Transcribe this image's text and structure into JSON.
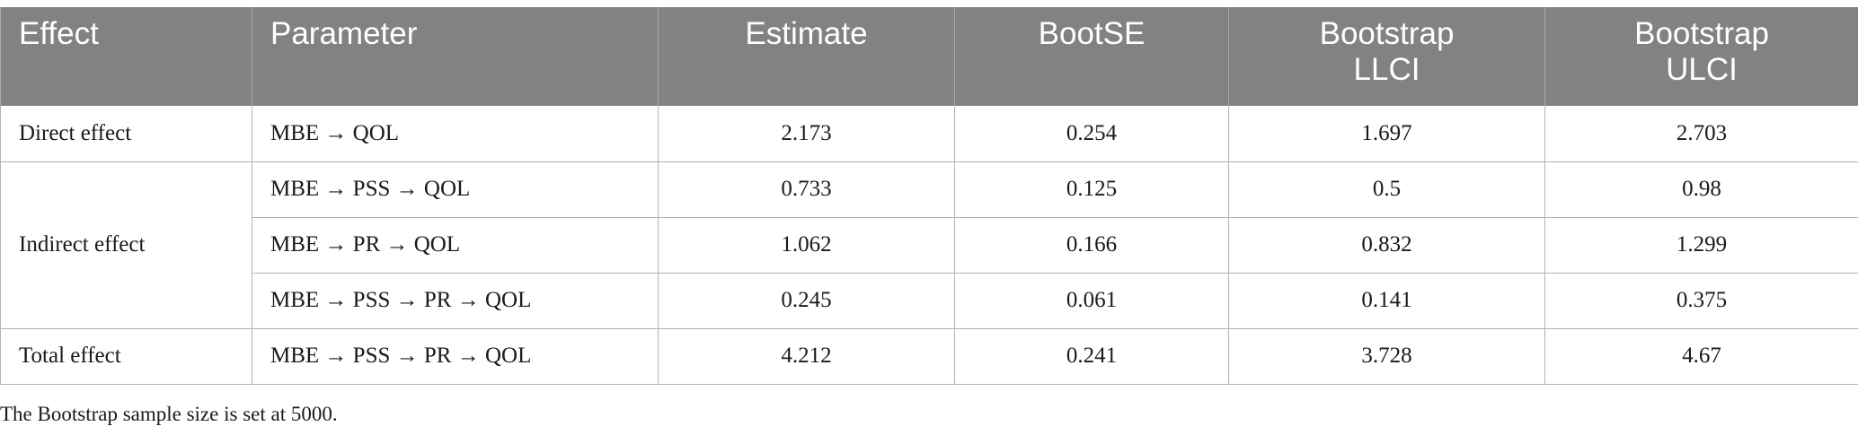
{
  "table": {
    "headers": [
      "Effect",
      "Parameter",
      "Estimate",
      "BootSE",
      "Bootstrap LLCI",
      "Bootstrap ULCI"
    ],
    "header_lines": {
      "llci": [
        "Bootstrap",
        "LLCI"
      ],
      "ulci": [
        "Bootstrap",
        "ULCI"
      ]
    },
    "rows": [
      {
        "effect": "Direct effect",
        "parameter": "MBE → QOL",
        "estimate": "2.173",
        "bootse": "0.254",
        "llci": "1.697",
        "ulci": "2.703"
      },
      {
        "effect": "Indirect effect",
        "parameter": "MBE → PSS → QOL",
        "estimate": "0.733",
        "bootse": "0.125",
        "llci": "0.5",
        "ulci": "0.98"
      },
      {
        "effect": "",
        "parameter": "MBE → PR → QOL",
        "estimate": "1.062",
        "bootse": "0.166",
        "llci": "0.832",
        "ulci": "1.299"
      },
      {
        "effect": "",
        "parameter": "MBE → PSS → PR → QOL",
        "estimate": "0.245",
        "bootse": "0.061",
        "llci": "0.141",
        "ulci": "0.375"
      },
      {
        "effect": "Total effect",
        "parameter": "MBE → PSS → PR → QOL",
        "estimate": "4.212",
        "bootse": "0.241",
        "llci": "3.728",
        "ulci": "4.67"
      }
    ]
  },
  "footnote": "The Bootstrap sample size is set at 5000.",
  "colors": {
    "header_bg": "#818284",
    "header_text": "#ffffff",
    "grid": "#b3b3b3"
  }
}
